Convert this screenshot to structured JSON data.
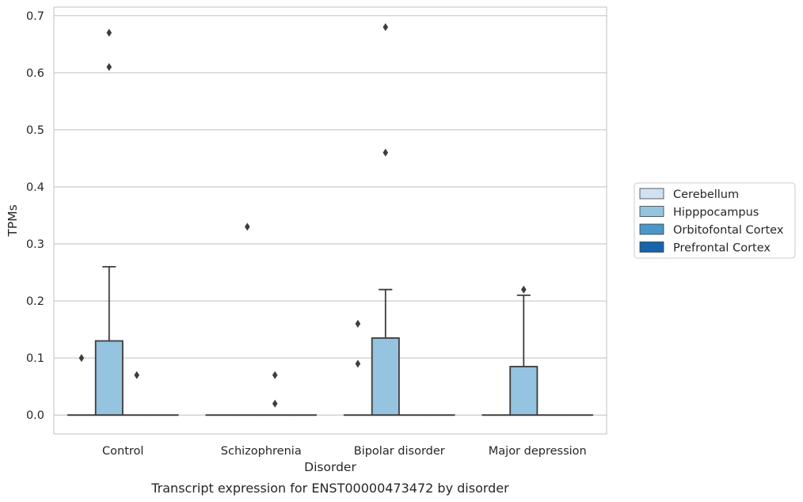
{
  "chart_data": {
    "type": "box",
    "title": "",
    "caption": "Transcript expression for ENST00000473472 by disorder",
    "xlabel": "Disorder",
    "ylabel": "TPMs",
    "ylim": [
      -0.033,
      0.715
    ],
    "yticks": [
      "0.0",
      "0.1",
      "0.2",
      "0.3",
      "0.4",
      "0.5",
      "0.6",
      "0.7"
    ],
    "grid": "horizontal",
    "legend_position": "right",
    "categories": [
      "Control",
      "Schizophrenia",
      "Bipolar disorder",
      "Major depression"
    ],
    "series": [
      {
        "name": "Cerebellum",
        "color": "#d0e1f2",
        "boxes": [
          {
            "q1": 0,
            "median": 0,
            "q3": 0,
            "whisker_low": 0,
            "whisker_high": 0,
            "outliers": []
          },
          {
            "q1": 0,
            "median": 0,
            "q3": 0,
            "whisker_low": 0,
            "whisker_high": 0,
            "outliers": []
          },
          {
            "q1": 0,
            "median": 0,
            "q3": 0,
            "whisker_low": 0,
            "whisker_high": 0,
            "outliers": []
          },
          {
            "q1": 0,
            "median": 0,
            "q3": 0,
            "whisker_low": 0,
            "whisker_high": 0,
            "outliers": []
          }
        ]
      },
      {
        "name": "Hipppocampus",
        "color": "#94c4df",
        "boxes": [
          {
            "q1": 0,
            "median": 0,
            "q3": 0.13,
            "whisker_low": 0,
            "whisker_high": 0.26,
            "outliers": [
              0.61,
              0.67
            ]
          },
          {
            "q1": 0,
            "median": 0,
            "q3": 0,
            "whisker_low": 0,
            "whisker_high": 0,
            "outliers": [
              0.33
            ]
          },
          {
            "q1": 0,
            "median": 0,
            "q3": 0.135,
            "whisker_low": 0,
            "whisker_high": 0.22,
            "outliers": [
              0.46,
              0.68
            ]
          },
          {
            "q1": 0,
            "median": 0,
            "q3": 0.085,
            "whisker_low": 0,
            "whisker_high": 0.21,
            "outliers": [
              0.22
            ]
          }
        ]
      },
      {
        "name": "Orbitofontal Cortex",
        "color": "#4a98c9",
        "boxes": [
          {
            "q1": 0,
            "median": 0,
            "q3": 0,
            "whisker_low": 0,
            "whisker_high": 0,
            "outliers": [
              0.07
            ]
          },
          {
            "q1": 0,
            "median": 0,
            "q3": 0,
            "whisker_low": 0,
            "whisker_high": 0,
            "outliers": [
              0.02,
              0.07
            ]
          },
          {
            "q1": 0,
            "median": 0,
            "q3": 0,
            "whisker_low": 0,
            "whisker_high": 0,
            "outliers": []
          },
          {
            "q1": 0,
            "median": 0,
            "q3": 0,
            "whisker_low": 0,
            "whisker_high": 0,
            "outliers": []
          }
        ]
      },
      {
        "name": "Prefrontal Cortex",
        "color": "#1764ab",
        "boxes": [
          {
            "q1": 0,
            "median": 0,
            "q3": 0,
            "whisker_low": 0,
            "whisker_high": 0,
            "outliers": [
              0.1
            ]
          },
          {
            "q1": 0,
            "median": 0,
            "q3": 0,
            "whisker_low": 0,
            "whisker_high": 0,
            "outliers": []
          },
          {
            "q1": 0,
            "median": 0,
            "q3": 0,
            "whisker_low": 0,
            "whisker_high": 0,
            "outliers": [
              0.09,
              0.16
            ]
          },
          {
            "q1": 0,
            "median": 0,
            "q3": 0,
            "whisker_low": 0,
            "whisker_high": 0,
            "outliers": []
          }
        ]
      }
    ],
    "display_order": [
      "Prefrontal Cortex",
      "Hipppocampus",
      "Orbitofontal Cortex",
      "Cerebellum"
    ]
  }
}
